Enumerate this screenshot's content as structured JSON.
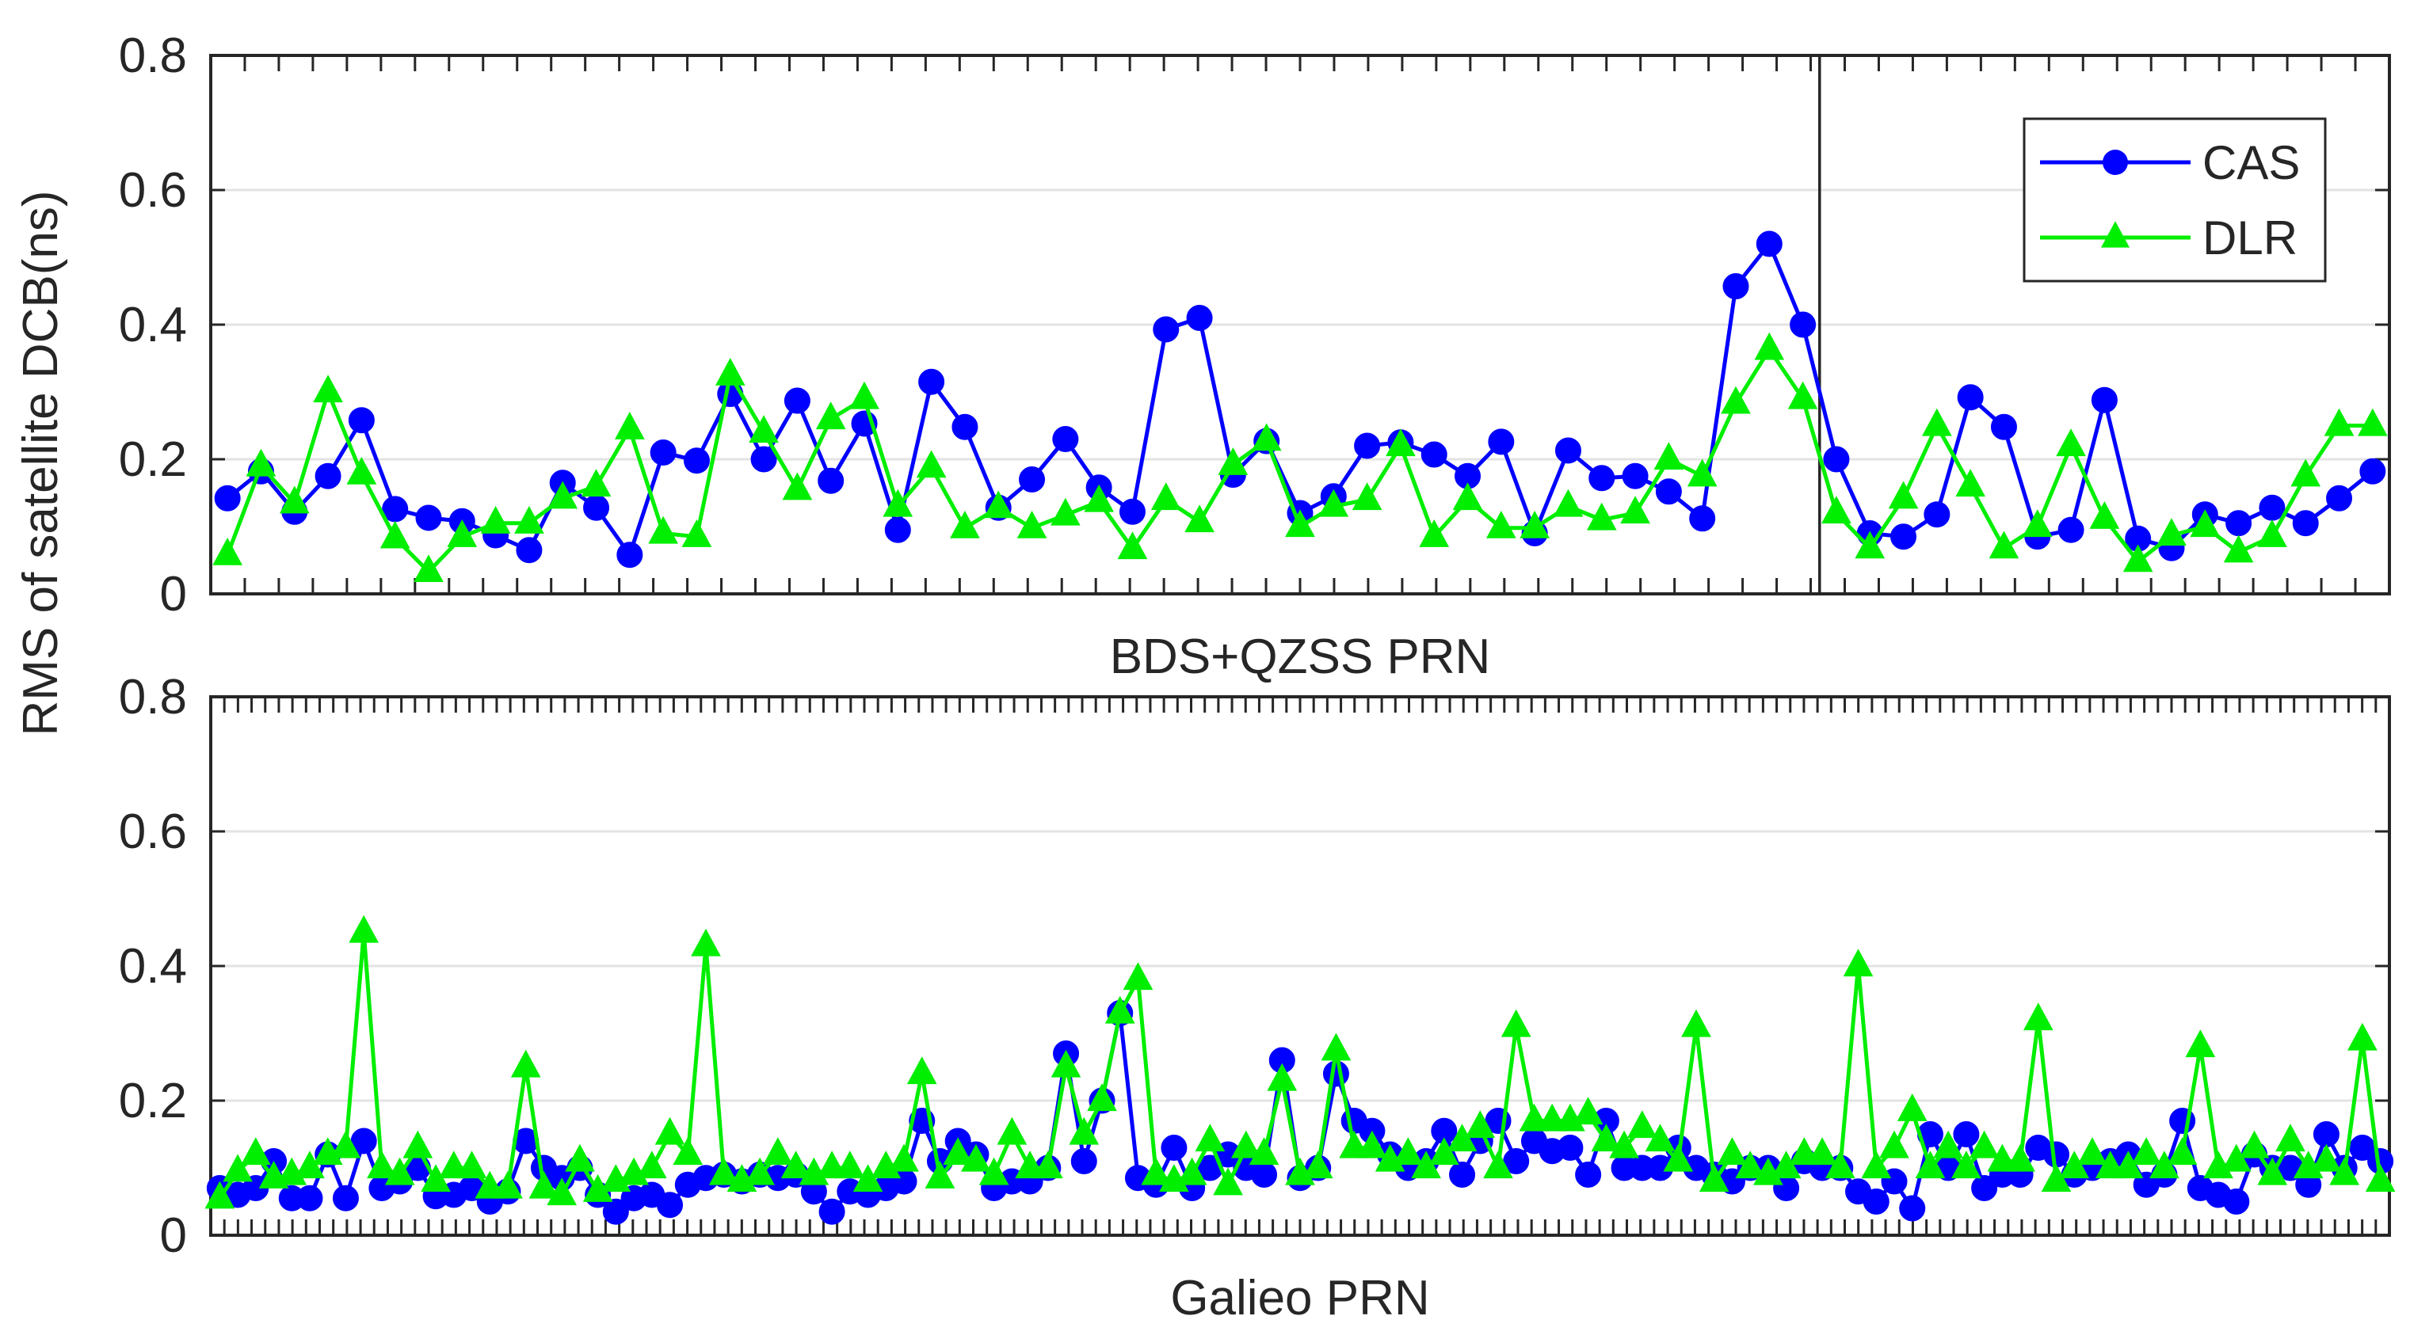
{
  "figure": {
    "ylabel": "RMS of satellite DCB(ns)"
  },
  "chart_data": [
    {
      "type": "line",
      "xlabel": "BDS+QZSS PRN",
      "ylabel": "RMS of satellite DCB(ns)",
      "ylim": [
        0,
        0.8
      ],
      "yticks": [
        "0",
        "0.2",
        "0.4",
        "0.6",
        "0.8"
      ],
      "grid": true,
      "legend": "top-right",
      "divider_after_index": 47,
      "n_points": 65,
      "series": [
        {
          "name": "CAS",
          "color": "#0000FF",
          "marker": "circle",
          "values": [
            0.142,
            0.182,
            0.122,
            0.175,
            0.258,
            0.126,
            0.113,
            0.108,
            0.087,
            0.065,
            0.165,
            0.128,
            0.058,
            0.21,
            0.198,
            0.297,
            0.2,
            0.287,
            0.168,
            0.253,
            0.095,
            0.315,
            0.248,
            0.128,
            0.17,
            0.23,
            0.158,
            0.122,
            0.393,
            0.41,
            0.177,
            0.227,
            0.12,
            0.145,
            0.22,
            0.225,
            0.207,
            0.175,
            0.226,
            0.09,
            0.213,
            0.172,
            0.175,
            0.152,
            0.112,
            0.457,
            0.52,
            0.4,
            0.2,
            0.09,
            0.085,
            0.118,
            0.292,
            0.248,
            0.085,
            0.095,
            0.288,
            0.082,
            0.068,
            0.118,
            0.105,
            0.128,
            0.105,
            0.142,
            0.182
          ]
        },
        {
          "name": "DLR",
          "color": "#00EE00",
          "marker": "triangle",
          "values": [
            0.058,
            0.19,
            0.135,
            0.3,
            0.178,
            0.083,
            0.033,
            0.085,
            0.105,
            0.105,
            0.142,
            0.16,
            0.245,
            0.09,
            0.085,
            0.325,
            0.24,
            0.155,
            0.26,
            0.29,
            0.13,
            0.188,
            0.098,
            0.128,
            0.098,
            0.117,
            0.137,
            0.067,
            0.14,
            0.107,
            0.192,
            0.228,
            0.1,
            0.13,
            0.14,
            0.22,
            0.085,
            0.14,
            0.098,
            0.098,
            0.13,
            0.11,
            0.12,
            0.2,
            0.175,
            0.283,
            0.363,
            0.29,
            0.12,
            0.068,
            0.142,
            0.25,
            0.16,
            0.068,
            0.1,
            0.22,
            0.112,
            0.048,
            0.087,
            0.1,
            0.062,
            0.085,
            0.175,
            0.25,
            0.25
          ]
        }
      ]
    },
    {
      "type": "line",
      "xlabel": "Galieo PRN",
      "ylabel": "RMS of satellite DCB(ns)",
      "ylim": [
        0,
        0.8
      ],
      "yticks": [
        "0",
        "0.2",
        "0.4",
        "0.6",
        "0.8"
      ],
      "grid": true,
      "n_points": 121,
      "series": [
        {
          "name": "CAS",
          "color": "#0000FF",
          "marker": "circle",
          "values": [
            0.07,
            0.06,
            0.07,
            0.11,
            0.055,
            0.055,
            0.12,
            0.055,
            0.14,
            0.07,
            0.08,
            0.1,
            0.058,
            0.06,
            0.07,
            0.05,
            0.065,
            0.14,
            0.1,
            0.085,
            0.1,
            0.06,
            0.035,
            0.055,
            0.06,
            0.045,
            0.075,
            0.085,
            0.09,
            0.08,
            0.09,
            0.085,
            0.09,
            0.065,
            0.035,
            0.065,
            0.06,
            0.07,
            0.08,
            0.17,
            0.11,
            0.14,
            0.12,
            0.07,
            0.08,
            0.08,
            0.1,
            0.27,
            0.11,
            0.2,
            0.33,
            0.085,
            0.075,
            0.13,
            0.07,
            0.1,
            0.12,
            0.1,
            0.09,
            0.26,
            0.085,
            0.1,
            0.24,
            0.17,
            0.155,
            0.12,
            0.1,
            0.11,
            0.155,
            0.09,
            0.14,
            0.17,
            0.11,
            0.14,
            0.125,
            0.13,
            0.09,
            0.17,
            0.1,
            0.1,
            0.1,
            0.13,
            0.1,
            0.09,
            0.08,
            0.1,
            0.1,
            0.07,
            0.11,
            0.1,
            0.1,
            0.065,
            0.05,
            0.08,
            0.04,
            0.15,
            0.1,
            0.15,
            0.07,
            0.09,
            0.09,
            0.13,
            0.12,
            0.09,
            0.1,
            0.11,
            0.12,
            0.075,
            0.09,
            0.17,
            0.07,
            0.06,
            0.05,
            0.12,
            0.1,
            0.1,
            0.075,
            0.15,
            0.1,
            0.13,
            0.11
          ]
        },
        {
          "name": "DLR",
          "color": "#00EE00",
          "marker": "triangle",
          "values": [
            0.055,
            0.095,
            0.12,
            0.085,
            0.09,
            0.1,
            0.12,
            0.13,
            0.45,
            0.1,
            0.09,
            0.13,
            0.08,
            0.1,
            0.1,
            0.07,
            0.07,
            0.25,
            0.07,
            0.06,
            0.11,
            0.065,
            0.08,
            0.09,
            0.1,
            0.15,
            0.12,
            0.43,
            0.09,
            0.08,
            0.09,
            0.12,
            0.1,
            0.09,
            0.1,
            0.1,
            0.08,
            0.1,
            0.11,
            0.24,
            0.085,
            0.12,
            0.11,
            0.09,
            0.15,
            0.1,
            0.1,
            0.25,
            0.15,
            0.2,
            0.33,
            0.38,
            0.09,
            0.08,
            0.09,
            0.14,
            0.075,
            0.13,
            0.12,
            0.23,
            0.09,
            0.1,
            0.275,
            0.13,
            0.13,
            0.11,
            0.12,
            0.1,
            0.12,
            0.14,
            0.16,
            0.1,
            0.31,
            0.17,
            0.17,
            0.17,
            0.18,
            0.14,
            0.13,
            0.16,
            0.14,
            0.11,
            0.31,
            0.08,
            0.12,
            0.1,
            0.09,
            0.1,
            0.12,
            0.12,
            0.1,
            0.4,
            0.1,
            0.13,
            0.185,
            0.1,
            0.13,
            0.1,
            0.13,
            0.11,
            0.11,
            0.32,
            0.08,
            0.1,
            0.12,
            0.1,
            0.1,
            0.12,
            0.1,
            0.12,
            0.28,
            0.1,
            0.11,
            0.13,
            0.09,
            0.14,
            0.1,
            0.11,
            0.09,
            0.29,
            0.08
          ]
        }
      ]
    }
  ]
}
